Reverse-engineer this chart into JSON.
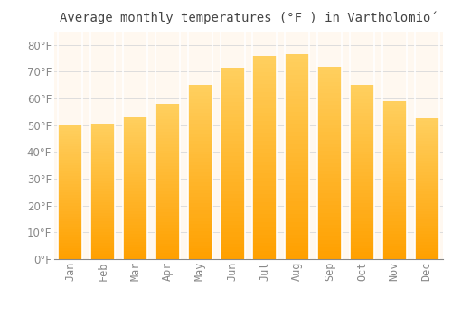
{
  "title": "Average monthly temperatures (°F ) in Vartholomió",
  "months": [
    "Jan",
    "Feb",
    "Mar",
    "Apr",
    "May",
    "Jun",
    "Jul",
    "Aug",
    "Sep",
    "Oct",
    "Nov",
    "Dec"
  ],
  "values": [
    50,
    50.5,
    53,
    58,
    65,
    71.5,
    76,
    76.5,
    72,
    65,
    59,
    52.5
  ],
  "bar_color_top": "#FFD060",
  "bar_color_bottom": "#FFA000",
  "background_color": "#FFFFFF",
  "plot_bg_color": "#FFF8F0",
  "grid_color": "#DDDDDD",
  "ylim": [
    0,
    85
  ],
  "yticks": [
    0,
    10,
    20,
    30,
    40,
    50,
    60,
    70,
    80
  ],
  "title_fontsize": 10,
  "tick_fontsize": 8.5,
  "tick_label_color": "#888888",
  "title_color": "#444444",
  "bar_width": 0.75
}
